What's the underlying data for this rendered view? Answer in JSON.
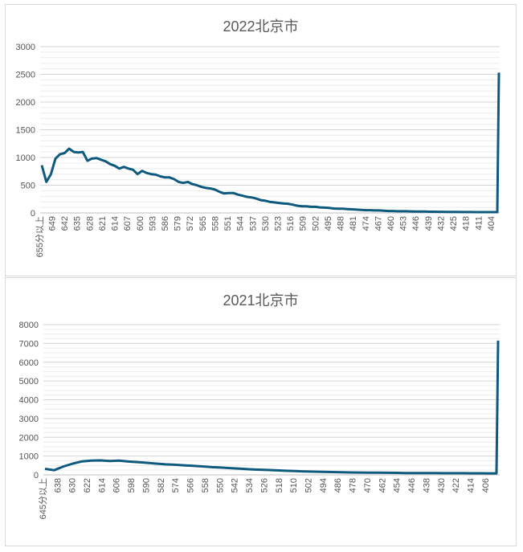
{
  "chart_data": [
    {
      "type": "line",
      "title": "2022北京市",
      "xlabel": "",
      "ylabel": "",
      "ylim": [
        0,
        3000
      ],
      "yticks": [
        "0",
        "500",
        "1000",
        "1500",
        "2000",
        "2500",
        "3000"
      ],
      "x_tick_labels": [
        "655分以上",
        "649",
        "642",
        "635",
        "628",
        "621",
        "614",
        "607",
        "600",
        "593",
        "586",
        "579",
        "572",
        "565",
        "558",
        "551",
        "544",
        "537",
        "530",
        "523",
        "516",
        "509",
        "502",
        "495",
        "488",
        "481",
        "474",
        "467",
        "460",
        "453",
        "446",
        "439",
        "432",
        "425",
        "418",
        "411",
        "404"
      ],
      "grid": true,
      "color": "#0e5a7e",
      "series": [
        {
          "values_by_score": [
            [
              655,
              860
            ],
            [
              654,
              560
            ],
            [
              653,
              700
            ],
            [
              652,
              980
            ],
            [
              651,
              1060
            ],
            [
              650,
              1080
            ],
            [
              649,
              1160
            ],
            [
              648,
              1100
            ],
            [
              647,
              1090
            ],
            [
              646,
              1100
            ],
            [
              645,
              940
            ],
            [
              644,
              980
            ],
            [
              643,
              990
            ],
            [
              642,
              960
            ],
            [
              641,
              930
            ],
            [
              640,
              880
            ],
            [
              639,
              850
            ],
            [
              638,
              800
            ],
            [
              637,
              830
            ],
            [
              636,
              800
            ],
            [
              635,
              780
            ],
            [
              634,
              700
            ],
            [
              633,
              760
            ],
            [
              632,
              720
            ],
            [
              631,
              700
            ],
            [
              630,
              690
            ],
            [
              629,
              660
            ],
            [
              628,
              640
            ],
            [
              627,
              640
            ],
            [
              626,
              610
            ],
            [
              625,
              560
            ],
            [
              624,
              540
            ],
            [
              623,
              560
            ],
            [
              622,
              520
            ],
            [
              621,
              500
            ],
            [
              620,
              470
            ],
            [
              619,
              450
            ],
            [
              618,
              440
            ],
            [
              617,
              420
            ],
            [
              616,
              380
            ],
            [
              615,
              350
            ],
            [
              614,
              360
            ],
            [
              613,
              360
            ],
            [
              612,
              330
            ],
            [
              611,
              310
            ],
            [
              610,
              290
            ],
            [
              609,
              280
            ],
            [
              608,
              260
            ],
            [
              607,
              230
            ],
            [
              606,
              220
            ],
            [
              605,
              200
            ],
            [
              604,
              190
            ],
            [
              603,
              180
            ],
            [
              602,
              170
            ],
            [
              601,
              165
            ],
            [
              600,
              150
            ],
            [
              599,
              130
            ],
            [
              598,
              120
            ],
            [
              597,
              120
            ],
            [
              596,
              110
            ],
            [
              595,
              110
            ],
            [
              594,
              100
            ],
            [
              593,
              95
            ],
            [
              592,
              90
            ],
            [
              591,
              80
            ],
            [
              590,
              75
            ],
            [
              589,
              75
            ],
            [
              588,
              70
            ],
            [
              587,
              65
            ],
            [
              586,
              60
            ],
            [
              585,
              55
            ],
            [
              584,
              50
            ],
            [
              583,
              50
            ],
            [
              582,
              45
            ],
            [
              581,
              45
            ],
            [
              580,
              40
            ],
            [
              579,
              35
            ],
            [
              578,
              35
            ],
            [
              577,
              30
            ],
            [
              576,
              30
            ],
            [
              575,
              30
            ],
            [
              574,
              28
            ],
            [
              573,
              26
            ],
            [
              572,
              25
            ],
            [
              571,
              24
            ],
            [
              570,
              22
            ],
            [
              569,
              22
            ],
            [
              568,
              20
            ],
            [
              567,
              20
            ],
            [
              566,
              18
            ],
            [
              565,
              18
            ],
            [
              564,
              17
            ],
            [
              563,
              16
            ],
            [
              562,
              16
            ],
            [
              561,
              16
            ],
            [
              560,
              15
            ],
            [
              559,
              15
            ],
            [
              558,
              15
            ],
            [
              557,
              14
            ],
            [
              556,
              14
            ]
          ],
          "final_value": 2530
        }
      ]
    },
    {
      "type": "line",
      "title": "2021北京市",
      "xlabel": "",
      "ylabel": "",
      "ylim": [
        0,
        8000
      ],
      "yticks": [
        "0",
        "1000",
        "2000",
        "3000",
        "4000",
        "5000",
        "6000",
        "7000",
        "8000"
      ],
      "x_tick_labels": [
        "645分以上",
        "638",
        "630",
        "622",
        "614",
        "606",
        "598",
        "590",
        "582",
        "574",
        "566",
        "558",
        "550",
        "542",
        "534",
        "526",
        "518",
        "510",
        "502",
        "494",
        "486",
        "478",
        "470",
        "462",
        "454",
        "446",
        "438",
        "430",
        "422",
        "414",
        "406"
      ],
      "grid": true,
      "color": "#0e5a7e",
      "series": [
        {
          "values_by_score": [
            [
              645,
              320
            ],
            [
              640,
              250
            ],
            [
              635,
              450
            ],
            [
              630,
              600
            ],
            [
              625,
              720
            ],
            [
              620,
              760
            ],
            [
              615,
              770
            ],
            [
              610,
              740
            ],
            [
              605,
              760
            ],
            [
              600,
              710
            ],
            [
              595,
              680
            ],
            [
              590,
              640
            ],
            [
              585,
              600
            ],
            [
              580,
              560
            ],
            [
              575,
              540
            ],
            [
              570,
              510
            ],
            [
              565,
              480
            ],
            [
              560,
              450
            ],
            [
              555,
              410
            ],
            [
              550,
              390
            ],
            [
              545,
              360
            ],
            [
              540,
              330
            ],
            [
              535,
              300
            ],
            [
              530,
              280
            ],
            [
              525,
              260
            ],
            [
              520,
              240
            ],
            [
              515,
              220
            ],
            [
              510,
              200
            ],
            [
              505,
              185
            ],
            [
              500,
              170
            ],
            [
              495,
              160
            ],
            [
              490,
              150
            ],
            [
              485,
              140
            ],
            [
              480,
              130
            ],
            [
              475,
              125
            ],
            [
              470,
              120
            ],
            [
              465,
              115
            ],
            [
              460,
              110
            ],
            [
              455,
              105
            ],
            [
              450,
              100
            ],
            [
              445,
              100
            ],
            [
              440,
              95
            ],
            [
              435,
              95
            ],
            [
              430,
              90
            ],
            [
              425,
              90
            ],
            [
              420,
              88
            ],
            [
              415,
              86
            ],
            [
              410,
              85
            ],
            [
              405,
              80
            ],
            [
              403,
              80
            ]
          ],
          "final_value": 7150
        }
      ]
    }
  ]
}
